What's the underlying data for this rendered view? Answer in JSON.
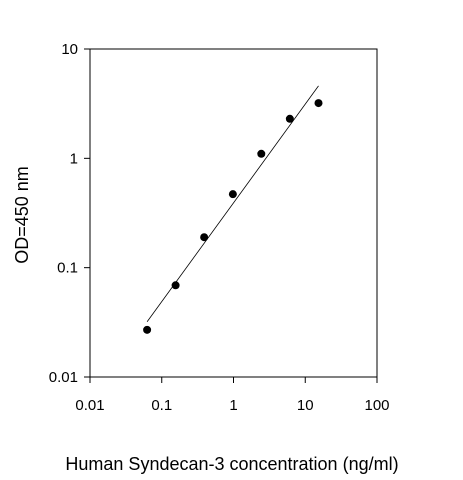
{
  "chart_data": {
    "type": "scatter",
    "xscale": "log",
    "yscale": "log",
    "xlim": [
      0.01,
      100
    ],
    "ylim": [
      0.01,
      10
    ],
    "xlabel": "Human Syndecan-3 concentration (ng/ml)",
    "ylabel": "OD=450 nm",
    "xticks": [
      "0.01",
      "0.1",
      "1",
      "10",
      "100"
    ],
    "yticks": [
      "0.01",
      "0.1",
      "1",
      "10"
    ],
    "grid": false,
    "legend": "none",
    "marker_color": "#000000",
    "series": [
      {
        "x": [
          0.0625,
          0.156,
          0.39,
          0.98,
          2.44,
          6.1,
          15.3
        ],
        "y": [
          0.027,
          0.069,
          0.19,
          0.47,
          1.1,
          2.3,
          3.2
        ]
      }
    ],
    "fit_line": {
      "x": [
        0.0625,
        15.3
      ],
      "y": [
        0.032,
        4.6
      ]
    }
  }
}
